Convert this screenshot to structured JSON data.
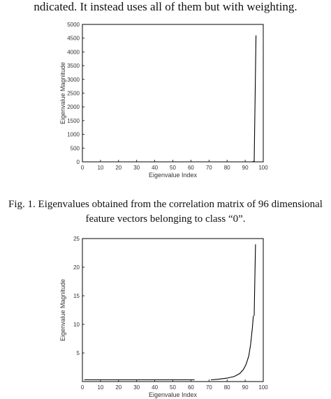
{
  "paragraph_fragment": "ndicated. It instead uses all of them but with weighting.",
  "caption": {
    "line1": "Fig. 1. Eigenvalues obtained from the correlation matrix of 96 dimensional",
    "line2": "feature vectors belonging to class “0”."
  },
  "chart_data": [
    {
      "type": "line",
      "title": "",
      "xlabel": "Eigenvalue Index",
      "ylabel": "Eigenvalue Magnitude",
      "xlim": [
        0,
        100
      ],
      "ylim": [
        0,
        5000
      ],
      "xticks": [
        "0",
        "10",
        "20",
        "30",
        "40",
        "50",
        "60",
        "70",
        "80",
        "90",
        "100"
      ],
      "yticks": [
        "0",
        "500",
        "1000",
        "1500",
        "2000",
        "2500",
        "3000",
        "3500",
        "4000",
        "4500",
        "5000"
      ],
      "series": [
        {
          "x": [
            1,
            10,
            20,
            30,
            40,
            50,
            60,
            70,
            80,
            90,
            93,
            94,
            95,
            96
          ],
          "y": [
            0,
            0,
            0,
            0,
            0,
            0,
            0,
            0,
            0,
            0,
            1,
            3,
            20,
            4600
          ]
        }
      ]
    },
    {
      "type": "line",
      "title": "",
      "xlabel": "Eigenvalue Index",
      "ylabel": "Eigenvalue Magnitude",
      "xlim": [
        0,
        100
      ],
      "ylim": [
        0,
        25
      ],
      "xticks": [
        "0",
        "10",
        "20",
        "30",
        "40",
        "50",
        "60",
        "70",
        "80",
        "90",
        "100"
      ],
      "yticks": [
        "5",
        "10",
        "15",
        "20",
        "25"
      ],
      "series": [
        {
          "x": [
            1,
            10,
            20,
            30,
            40,
            50,
            62
          ],
          "y": [
            0.3,
            0.3,
            0.3,
            0.3,
            0.3,
            0.3,
            0.3
          ]
        },
        {
          "x": [
            71,
            75,
            80,
            84,
            87,
            89,
            90.5,
            92,
            93,
            93.5,
            94,
            94.5
          ],
          "y": [
            0.3,
            0.4,
            0.6,
            0.9,
            1.4,
            2.1,
            3.0,
            4.5,
            6.5,
            8.0,
            9.5,
            11.5
          ]
        },
        {
          "x": [
            95,
            95.3,
            95.7
          ],
          "y": [
            11.5,
            17,
            24
          ]
        }
      ]
    }
  ]
}
